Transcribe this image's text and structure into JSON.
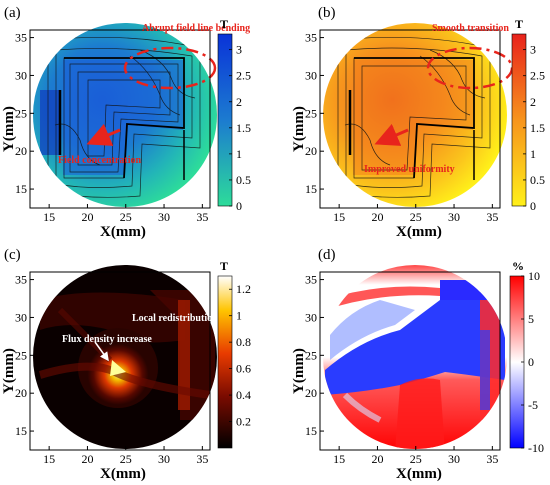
{
  "chart_data": [
    {
      "type": "heatmap",
      "panel_label": "(a)",
      "xlabel": "X(mm)",
      "ylabel": "Y(mm)",
      "xlim": [
        12.5,
        36
      ],
      "ylim": [
        12.5,
        36
      ],
      "xticks": [
        "15",
        "20",
        "25",
        "30",
        "35"
      ],
      "yticks": [
        "15",
        "20",
        "25",
        "30",
        "35"
      ],
      "colorbar": {
        "title": "T",
        "ticks": [
          "0",
          "0.5",
          "1",
          "1.5",
          "2",
          "2.5",
          "3"
        ],
        "range": [
          0,
          3.3
        ],
        "colors": [
          "#2ddc9a",
          "#1c7bd0",
          "#0a33d8"
        ]
      },
      "annotations": [
        "Abrupt field line bending",
        "Field concentration"
      ],
      "contour_lines": true
    },
    {
      "type": "heatmap",
      "panel_label": "(b)",
      "xlabel": "X(mm)",
      "ylabel": "Y(mm)",
      "xlim": [
        12.5,
        36
      ],
      "ylim": [
        12.5,
        36
      ],
      "xticks": [
        "15",
        "20",
        "25",
        "30",
        "35"
      ],
      "yticks": [
        "15",
        "20",
        "25",
        "30",
        "35"
      ],
      "colorbar": {
        "title": "T",
        "ticks": [
          "0",
          "0.5",
          "1",
          "1.5",
          "2",
          "2.5",
          "3"
        ],
        "range": [
          0,
          3.3
        ],
        "colors": [
          "#fff01a",
          "#f7941d",
          "#e8221c"
        ]
      },
      "annotations": [
        "Smooth transition",
        "Improved uniformity"
      ],
      "contour_lines": true
    },
    {
      "type": "heatmap",
      "panel_label": "(c)",
      "xlabel": "X(mm)",
      "ylabel": "Y(mm)",
      "xlim": [
        12.5,
        36
      ],
      "ylim": [
        12.5,
        36
      ],
      "xticks": [
        "15",
        "20",
        "25",
        "30",
        "35"
      ],
      "yticks": [
        "15",
        "20",
        "25",
        "30",
        "35"
      ],
      "colorbar": {
        "title": "T",
        "ticks": [
          "0.2",
          "0.4",
          "0.6",
          "0.8",
          "1",
          "1.2"
        ],
        "range": [
          0,
          1.3
        ],
        "colors": [
          "#000000",
          "#7a0b00",
          "#e83b00",
          "#ffc400",
          "#ffffff"
        ]
      },
      "annotations": [
        "Local redistribution",
        "Flux density increase"
      ],
      "contour_lines": false
    },
    {
      "type": "heatmap",
      "panel_label": "(d)",
      "xlabel": "X(mm)",
      "ylabel": "Y(mm)",
      "xlim": [
        12.5,
        36
      ],
      "ylim": [
        12.5,
        36
      ],
      "xticks": [
        "15",
        "20",
        "25",
        "30",
        "35"
      ],
      "yticks": [
        "15",
        "20",
        "25",
        "30",
        "35"
      ],
      "colorbar": {
        "title": "%",
        "ticks": [
          "-10",
          "-5",
          "0",
          "5",
          "10"
        ],
        "range": [
          -10,
          10
        ],
        "colors": [
          "#0000ff",
          "#ffffff",
          "#ff0000"
        ]
      },
      "annotations": [],
      "contour_lines": false
    }
  ]
}
